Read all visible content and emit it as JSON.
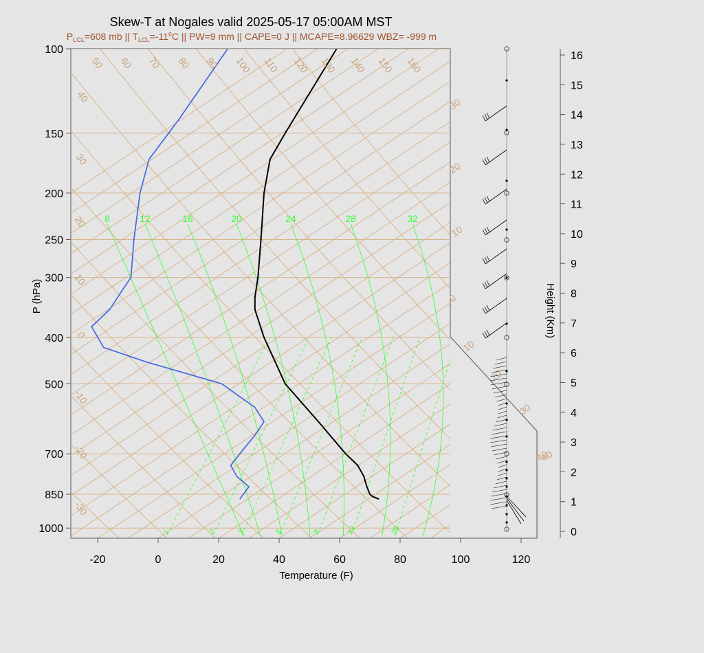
{
  "colors": {
    "background": "#e5e5e5",
    "isotherm": "#d9b48a",
    "isobar": "#d9b48a",
    "mixing_ratio": "#33ff33",
    "temperature": "#000000",
    "dewpoint": "#4169e1",
    "subtitle": "#a0522d",
    "iso_label": "#c9a27a"
  },
  "chart_data": {
    "type": "line",
    "title": "Skew-T at Nogales valid 2025-05-17 05:00AM MST",
    "subtitle": {
      "plcl_p": "P",
      "plcl_sub": "LCL",
      "plcl_val": "=608 mb || T",
      "tlcl_sub": "LCL",
      "tlcl_val": "=-11",
      "tlcl_unit": "C || PW=9 mm || CAPE=0 J || MCAPE=8.96629 WBZ= -999 m"
    },
    "xlabel": "Temperature (F)",
    "ylabel": "P (hPa)",
    "y2label": "Height (Km)",
    "x_ticks": [
      "-20",
      "0",
      "20",
      "40",
      "60",
      "80",
      "100",
      "120"
    ],
    "x_tick_values": [
      -20,
      0,
      20,
      40,
      60,
      80,
      100,
      120
    ],
    "p_ticks": [
      "100",
      "150",
      "200",
      "250",
      "300",
      "400",
      "500",
      "700",
      "850",
      "1000"
    ],
    "p_tick_values": [
      100,
      150,
      200,
      250,
      300,
      400,
      500,
      700,
      850,
      1000
    ],
    "height_ticks": [
      "0",
      "1",
      "2",
      "3",
      "4",
      "5",
      "6",
      "7",
      "8",
      "9",
      "10",
      "11",
      "12",
      "13",
      "14",
      "15",
      "16"
    ],
    "isotherm_labels": [
      "-30",
      "-20",
      "-10",
      "0",
      "10",
      "20",
      "30",
      "40",
      "50",
      "60",
      "70",
      "80",
      "90",
      "100",
      "110",
      "120",
      "130",
      "140",
      "150",
      "160"
    ],
    "theta_labels": [
      "0",
      "10",
      "20",
      "30",
      "40",
      "10",
      "20",
      "30",
      "40"
    ],
    "mixing_labels_top": [
      "8",
      "12",
      "16",
      "20",
      "24",
      "28",
      "32"
    ],
    "mixing_labels_bottom": [
      "1",
      "2",
      "3",
      "5",
      "8",
      "12",
      "20"
    ],
    "series": [
      {
        "name": "temperature",
        "p": [
          870,
          860,
          850,
          820,
          780,
          740,
          700,
          600,
          500,
          400,
          350,
          330,
          300,
          250,
          200,
          170,
          150,
          130,
          100
        ],
        "t": [
          73,
          71,
          70,
          69,
          68,
          66,
          62,
          53,
          42,
          35,
          32,
          32,
          33,
          34,
          35,
          37,
          42,
          48,
          59
        ]
      },
      {
        "name": "dewpoint",
        "p": [
          870,
          820,
          780,
          740,
          700,
          640,
          600,
          560,
          500,
          450,
          420,
          380,
          350,
          320,
          300,
          250,
          200,
          170,
          140,
          100
        ],
        "t": [
          27,
          30,
          26,
          24,
          27,
          32,
          35,
          32,
          21,
          -4,
          -18,
          -22,
          -16,
          -12,
          -9,
          -8,
          -6,
          -3,
          7,
          23
        ]
      }
    ]
  }
}
